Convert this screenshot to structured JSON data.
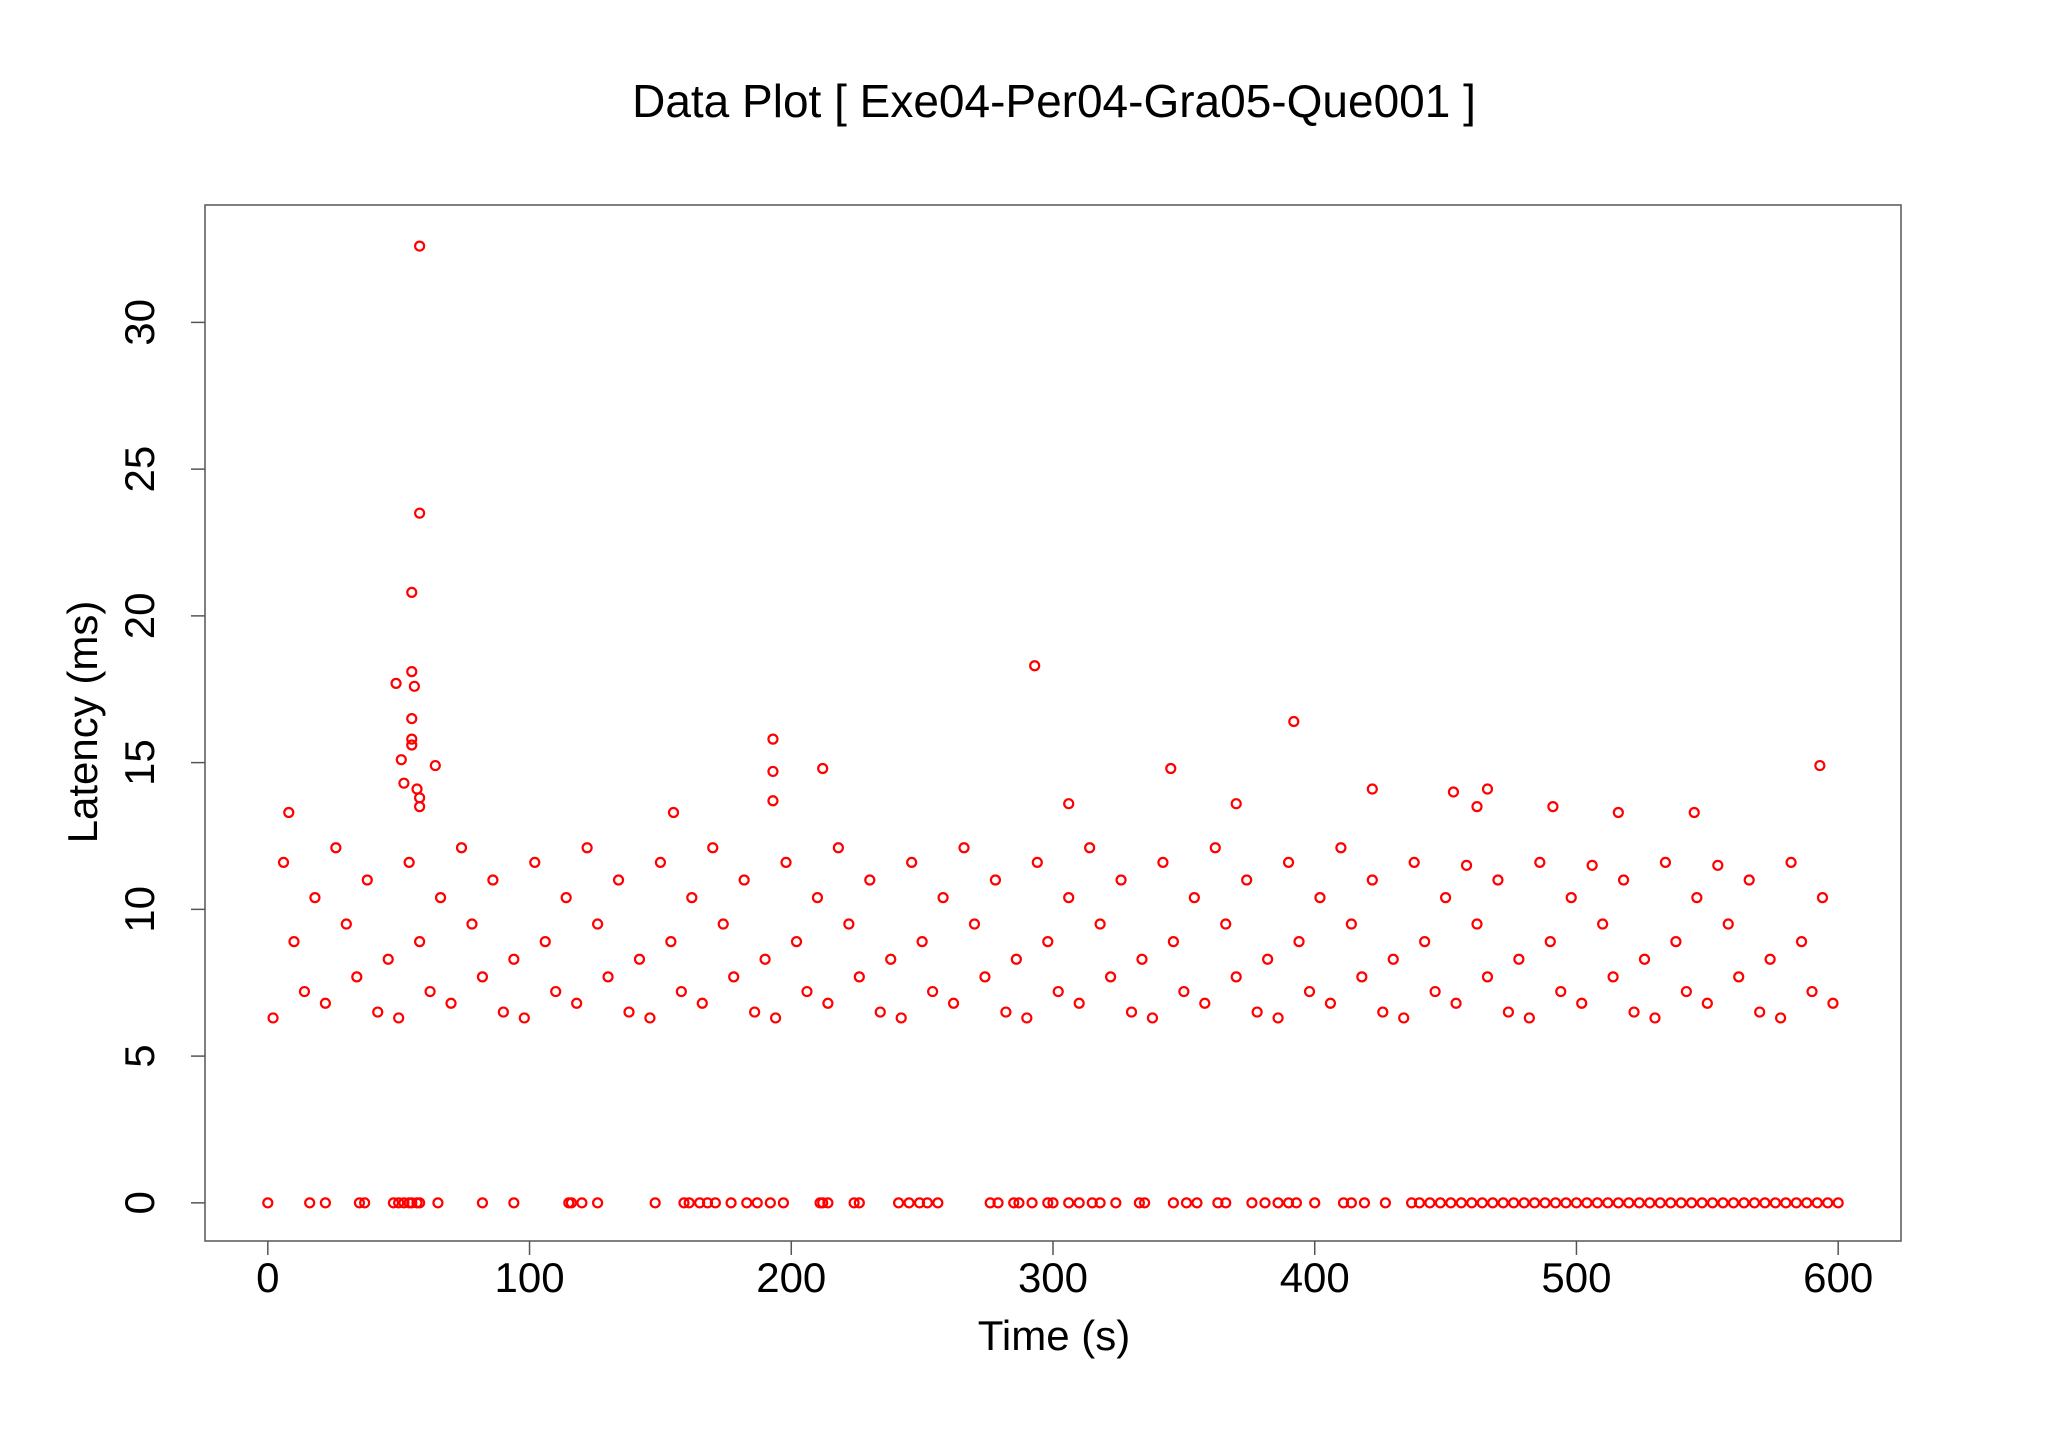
{
  "chart_data": {
    "type": "scatter",
    "title": "Data Plot [ Exe04-Per04-Gra05-Que001 ]",
    "x_label": "Time (s)",
    "y_label": "Latency (ms)",
    "color": "#ff0000",
    "xlim": [
      -24,
      624
    ],
    "ylim": [
      -1.3,
      34
    ],
    "xticks": [
      0,
      100,
      200,
      300,
      400,
      500,
      600
    ],
    "yticks": [
      0,
      5,
      10,
      15,
      20,
      25,
      30
    ],
    "x": [
      58,
      58,
      55,
      55,
      49,
      56,
      55,
      55,
      55,
      51,
      64,
      52,
      57,
      58,
      58,
      8,
      293,
      193,
      193,
      212,
      193,
      345,
      392,
      422,
      453,
      466,
      462,
      491,
      516,
      545,
      593,
      306,
      370,
      155,
      0,
      16,
      22,
      35,
      37,
      48,
      50,
      52,
      54,
      55,
      57,
      58,
      65,
      82,
      94,
      115,
      116,
      120,
      126,
      148,
      159,
      161,
      165,
      168,
      171,
      177,
      183,
      187,
      192,
      197,
      211,
      212,
      214,
      224,
      226,
      241,
      245,
      249,
      252,
      256,
      276,
      279,
      285,
      287,
      292,
      298,
      300,
      306,
      310,
      315,
      318,
      324,
      333,
      335,
      346,
      351,
      355,
      363,
      366,
      376,
      381,
      386,
      390,
      393,
      400,
      411,
      414,
      419,
      427,
      437,
      440,
      444,
      448,
      452,
      456,
      460,
      464,
      468,
      472,
      476,
      480,
      484,
      488,
      492,
      496,
      500,
      504,
      508,
      512,
      516,
      520,
      524,
      528,
      532,
      536,
      540,
      544,
      548,
      552,
      556,
      560,
      564,
      568,
      572,
      576,
      580,
      584,
      588,
      592,
      596,
      600,
      2,
      6,
      10,
      14,
      18,
      22,
      26,
      30,
      34,
      38,
      42,
      46,
      50,
      54,
      58,
      62,
      66,
      70,
      74,
      78,
      82,
      86,
      90,
      94,
      98,
      102,
      106,
      110,
      114,
      118,
      122,
      126,
      130,
      134,
      138,
      142,
      146,
      150,
      154,
      158,
      162,
      166,
      170,
      174,
      178,
      182,
      186,
      190,
      194,
      198,
      202,
      206,
      210,
      214,
      218,
      222,
      226,
      230,
      234,
      238,
      242,
      246,
      250,
      254,
      258,
      262,
      266,
      270,
      274,
      278,
      282,
      286,
      290,
      294,
      298,
      302,
      306,
      310,
      314,
      318,
      322,
      326,
      330,
      334,
      338,
      342,
      346,
      350,
      354,
      358,
      362,
      366,
      370,
      374,
      378,
      382,
      386,
      390,
      394,
      398,
      402,
      406,
      410,
      414,
      418,
      422,
      426,
      430,
      434,
      438,
      442,
      446,
      450,
      454,
      458,
      462,
      466,
      470,
      474,
      478,
      482,
      486,
      490,
      494,
      498,
      502,
      506,
      510,
      514,
      518,
      522,
      526,
      530,
      534,
      538,
      542,
      546,
      550,
      554,
      558,
      562,
      566,
      570,
      574,
      578,
      582,
      586,
      590,
      594,
      598
    ],
    "values": [
      32.6,
      23.5,
      20.8,
      18.1,
      17.7,
      17.6,
      16.5,
      15.8,
      15.6,
      15.1,
      14.9,
      14.3,
      14.1,
      13.8,
      13.5,
      13.3,
      18.3,
      15.8,
      14.7,
      14.8,
      13.7,
      14.8,
      16.4,
      14.1,
      14.0,
      14.1,
      13.5,
      13.5,
      13.3,
      13.3,
      14.9,
      13.6,
      13.6,
      13.3,
      0,
      0,
      0,
      0,
      0,
      0,
      0,
      0,
      0,
      0,
      0,
      0,
      0,
      0,
      0,
      0,
      0,
      0,
      0,
      0,
      0,
      0,
      0,
      0,
      0,
      0,
      0,
      0,
      0,
      0,
      0,
      0,
      0,
      0,
      0,
      0,
      0,
      0,
      0,
      0,
      0,
      0,
      0,
      0,
      0,
      0,
      0,
      0,
      0,
      0,
      0,
      0,
      0,
      0,
      0,
      0,
      0,
      0,
      0,
      0,
      0,
      0,
      0,
      0,
      0,
      0,
      0,
      0,
      0,
      0,
      0,
      0,
      0,
      0,
      0,
      0,
      0,
      0,
      0,
      0,
      0,
      0,
      0,
      0,
      0,
      0,
      0,
      0,
      0,
      0,
      0,
      0,
      0,
      0,
      0,
      0,
      0,
      0,
      0,
      0,
      0,
      0,
      0,
      0,
      0,
      0,
      0,
      0,
      0,
      0,
      0,
      6.3,
      11.6,
      8.9,
      7.2,
      10.4,
      6.8,
      12.1,
      9.5,
      7.7,
      11.0,
      6.5,
      8.3,
      6.3,
      11.6,
      8.9,
      7.2,
      10.4,
      6.8,
      12.1,
      9.5,
      7.7,
      11.0,
      6.5,
      8.3,
      6.3,
      11.6,
      8.9,
      7.2,
      10.4,
      6.8,
      12.1,
      9.5,
      7.7,
      11.0,
      6.5,
      8.3,
      6.3,
      11.6,
      8.9,
      7.2,
      10.4,
      6.8,
      12.1,
      9.5,
      7.7,
      11.0,
      6.5,
      8.3,
      6.3,
      11.6,
      8.9,
      7.2,
      10.4,
      6.8,
      12.1,
      9.5,
      7.7,
      11.0,
      6.5,
      8.3,
      6.3,
      11.6,
      8.9,
      7.2,
      10.4,
      6.8,
      12.1,
      9.5,
      7.7,
      11.0,
      6.5,
      8.3,
      6.3,
      11.6,
      8.9,
      7.2,
      10.4,
      6.8,
      12.1,
      9.5,
      7.7,
      11.0,
      6.5,
      8.3,
      6.3,
      11.6,
      8.9,
      7.2,
      10.4,
      6.8,
      12.1,
      9.5,
      7.7,
      11.0,
      6.5,
      8.3,
      6.3,
      11.6,
      8.9,
      7.2,
      10.4,
      6.8,
      12.1,
      9.5,
      7.7,
      11.0,
      6.5,
      8.3,
      6.3,
      11.6,
      8.9,
      7.2,
      10.4,
      6.8,
      11.5,
      9.5,
      7.7,
      11.0,
      6.5,
      8.3,
      6.3,
      11.6,
      8.9,
      7.2,
      10.4,
      6.8,
      11.5,
      9.5,
      7.7,
      11.0,
      6.5,
      8.3,
      6.3,
      11.6,
      8.9,
      7.2,
      10.4,
      6.8,
      11.5,
      9.5,
      7.7,
      11.0,
      6.5,
      8.3,
      6.3,
      11.6,
      8.9,
      7.2,
      10.4,
      6.8
    ]
  }
}
